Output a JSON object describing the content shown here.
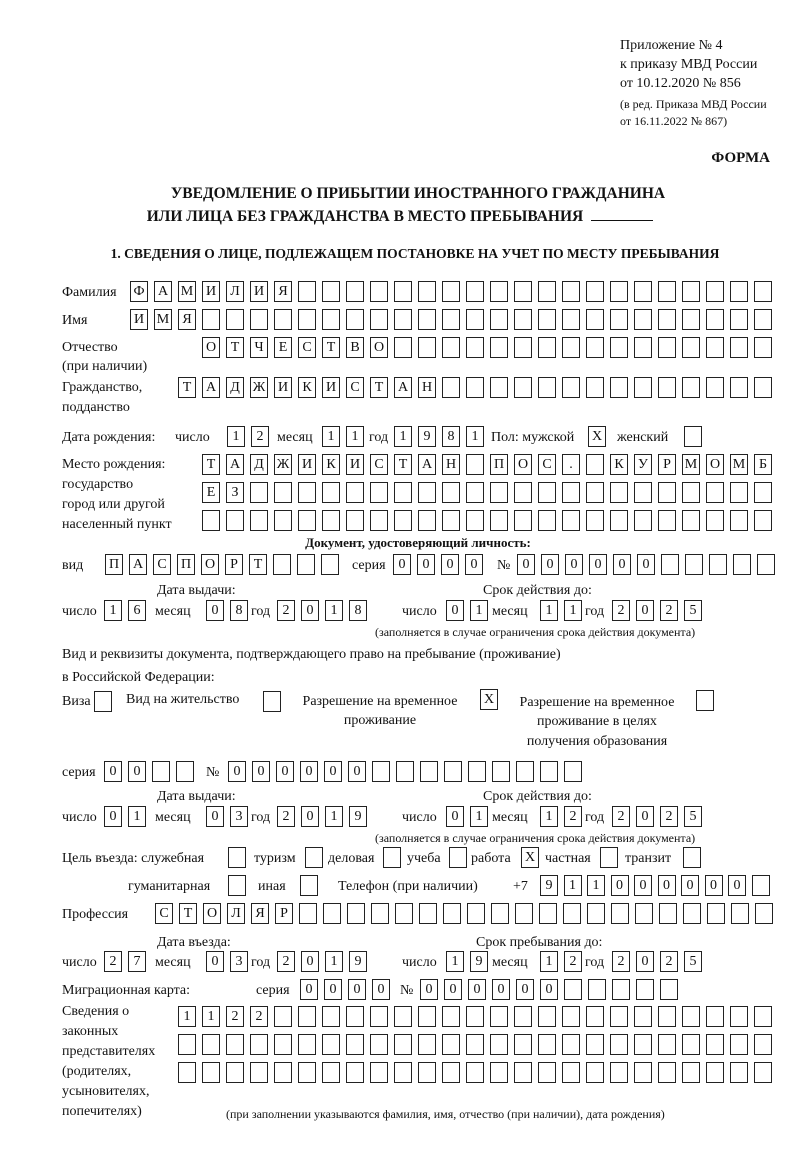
{
  "header": {
    "appendix": "Приложение № 4",
    "order": "к приказу МВД России",
    "order_date": "от 10.12.2020 № 856",
    "revision1": "(в ред. Приказа МВД России",
    "revision2": "от 16.11.2022 № 867)",
    "form_label": "ФОРМА",
    "title1": "УВЕДОМЛЕНИЕ О ПРИБЫТИИ ИНОСТРАННОГО ГРАЖДАНИНА",
    "title2": "ИЛИ ЛИЦА БЕЗ ГРАЖДАНСТВА В МЕСТО ПРЕБЫВАНИЯ",
    "section1": "1. СВЕДЕНИЯ О ЛИЦЕ, ПОДЛЕЖАЩЕМ ПОСТАНОВКЕ НА УЧЕТ ПО МЕСТУ ПРЕБЫВАНИЯ"
  },
  "person": {
    "surname": {
      "label": "Фамилия",
      "value": "ФАМИЛИЯ"
    },
    "name": {
      "label": "Имя",
      "value": "ИМЯ"
    },
    "patronymic": {
      "label1": "Отчество",
      "label2": "(при наличии)",
      "value": "ОТЧЕСТВО"
    },
    "citizenship": {
      "label1": "Гражданство,",
      "label2": "подданство",
      "value": "ТАДЖИКИСТАН"
    },
    "birth": {
      "label": "Дата рождения:",
      "day_label": "число",
      "day": "12",
      "month_label": "месяц",
      "month": "11",
      "year_label": "год",
      "year": "1981"
    },
    "sex": {
      "label": "Пол: мужской",
      "male": "X",
      "female_label": "женский",
      "female": ""
    },
    "birthplace": {
      "label1": "Место рождения:",
      "label2": "государство",
      "label3": "город или другой",
      "label4": "населенный пункт",
      "row1": "ТАДЖИКИСТАН ПОС. КУРМОМБ",
      "row2": "ЕЗ",
      "row3": ""
    }
  },
  "id_document": {
    "heading": "Документ, удостоверяющий личность:",
    "type_label": "вид",
    "type": "ПАСПОРТ",
    "series_label": "серия",
    "series": "0000",
    "number_label": "№",
    "number": "000000",
    "issue_label": "Дата выдачи:",
    "validity_label": "Срок действия до:",
    "issue": {
      "day_label": "число",
      "day": "16",
      "month_label": "месяц",
      "month": "08",
      "year_label": "год",
      "year": "2018"
    },
    "valid": {
      "day_label": "число",
      "day": "01",
      "month_label": "месяц",
      "month": "11",
      "year_label": "год",
      "year": "2025"
    },
    "note": "(заполняется в случае ограничения срока действия документа)"
  },
  "stay_document": {
    "heading1": "Вид и реквизиты документа, подтверждающего право на пребывание (проживание)",
    "heading2": "в Российской Федерации:",
    "visa_label": "Виза",
    "visa": "",
    "residence_label": "Вид на жительство",
    "residence": "",
    "temp_label1": "Разрешение на временное",
    "temp_label2": "проживание",
    "temp": "X",
    "edu_label1": "Разрешение на временное",
    "edu_label2": "проживание в целях",
    "edu_label3": "получения образования",
    "edu": "",
    "series_label": "серия",
    "series": "00",
    "number_label": "№",
    "number": "000000",
    "issue_label": "Дата выдачи:",
    "validity_label": "Срок действия до:",
    "issue": {
      "day_label": "число",
      "day": "01",
      "month_label": "месяц",
      "month": "03",
      "year_label": "год",
      "year": "2019"
    },
    "valid": {
      "day_label": "число",
      "day": "01",
      "month_label": "месяц",
      "month": "12",
      "year_label": "год",
      "year": "2025"
    },
    "note": "(заполняется в случае ограничения срока действия документа)"
  },
  "purpose": {
    "label": "Цель въезда: служебная",
    "official": "",
    "tourism_label": "туризм",
    "tourism": "",
    "business_label": "деловая",
    "business": "",
    "study_label": "учеба",
    "study": "",
    "work_label": "работа",
    "work": "X",
    "private_label": "частная",
    "private": "",
    "transit_label": "транзит",
    "transit": "",
    "humanitarian_label": "гуманитарная",
    "humanitarian": "",
    "other_label": "иная",
    "other": ""
  },
  "phone": {
    "label": "Телефон (при наличии)",
    "prefix": "+7",
    "value": "911000000"
  },
  "profession": {
    "label": "Профессия",
    "value": "СТОЛЯР"
  },
  "entry": {
    "entry_label": "Дата въезда:",
    "stay_label": "Срок пребывания до:",
    "entry": {
      "day_label": "число",
      "day": "27",
      "month_label": "месяц",
      "month": "03",
      "year_label": "год",
      "year": "2019"
    },
    "until": {
      "day_label": "число",
      "day": "19",
      "month_label": "месяц",
      "month": "12",
      "year_label": "год",
      "year": "2025"
    }
  },
  "migration_card": {
    "label": "Миграционная карта:",
    "series_label": "серия",
    "series": "0000",
    "number_label": "№",
    "number": "000000"
  },
  "representatives": {
    "label1": "Сведения о",
    "label2": "законных",
    "label3": "представителях",
    "label4": "(родителях,",
    "label5": "усыновителях,",
    "label6": "попечителях)",
    "row1": "1122",
    "row2": "",
    "row3": "",
    "note": "(при заполнении указываются фамилия, имя, отчество (при наличии), дата рождения)"
  }
}
